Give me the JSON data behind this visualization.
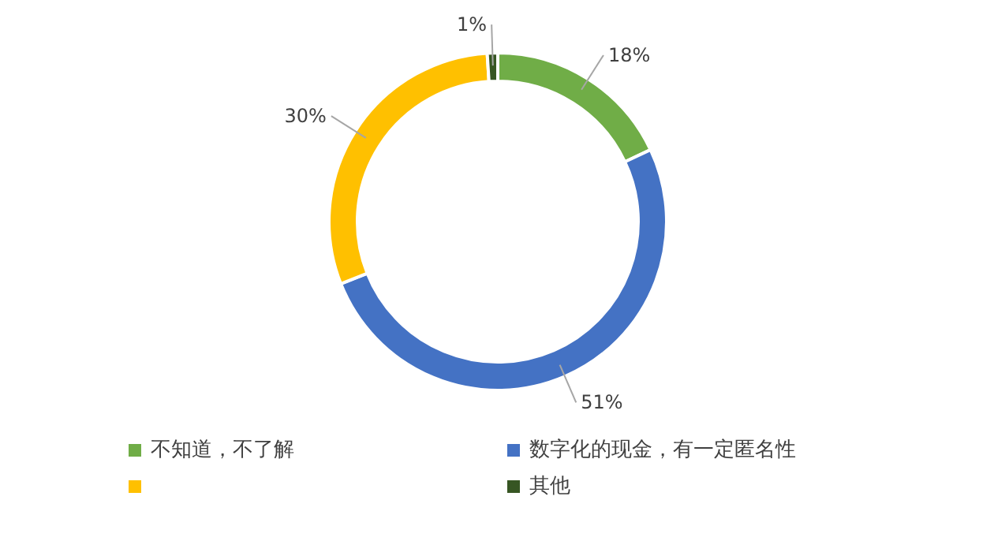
{
  "chart_data": {
    "type": "donut",
    "categories": [
      "不知道，不了解",
      "数字化的现金，有一定匿名性",
      null,
      "其他"
    ],
    "values": [
      18,
      51,
      30,
      1
    ],
    "colors": [
      "#70ad47",
      "#4472c4",
      "#ffc000",
      "#375623"
    ],
    "value_labels": [
      "18%",
      "51%",
      "30%",
      "1%"
    ],
    "legend": "bottom"
  }
}
